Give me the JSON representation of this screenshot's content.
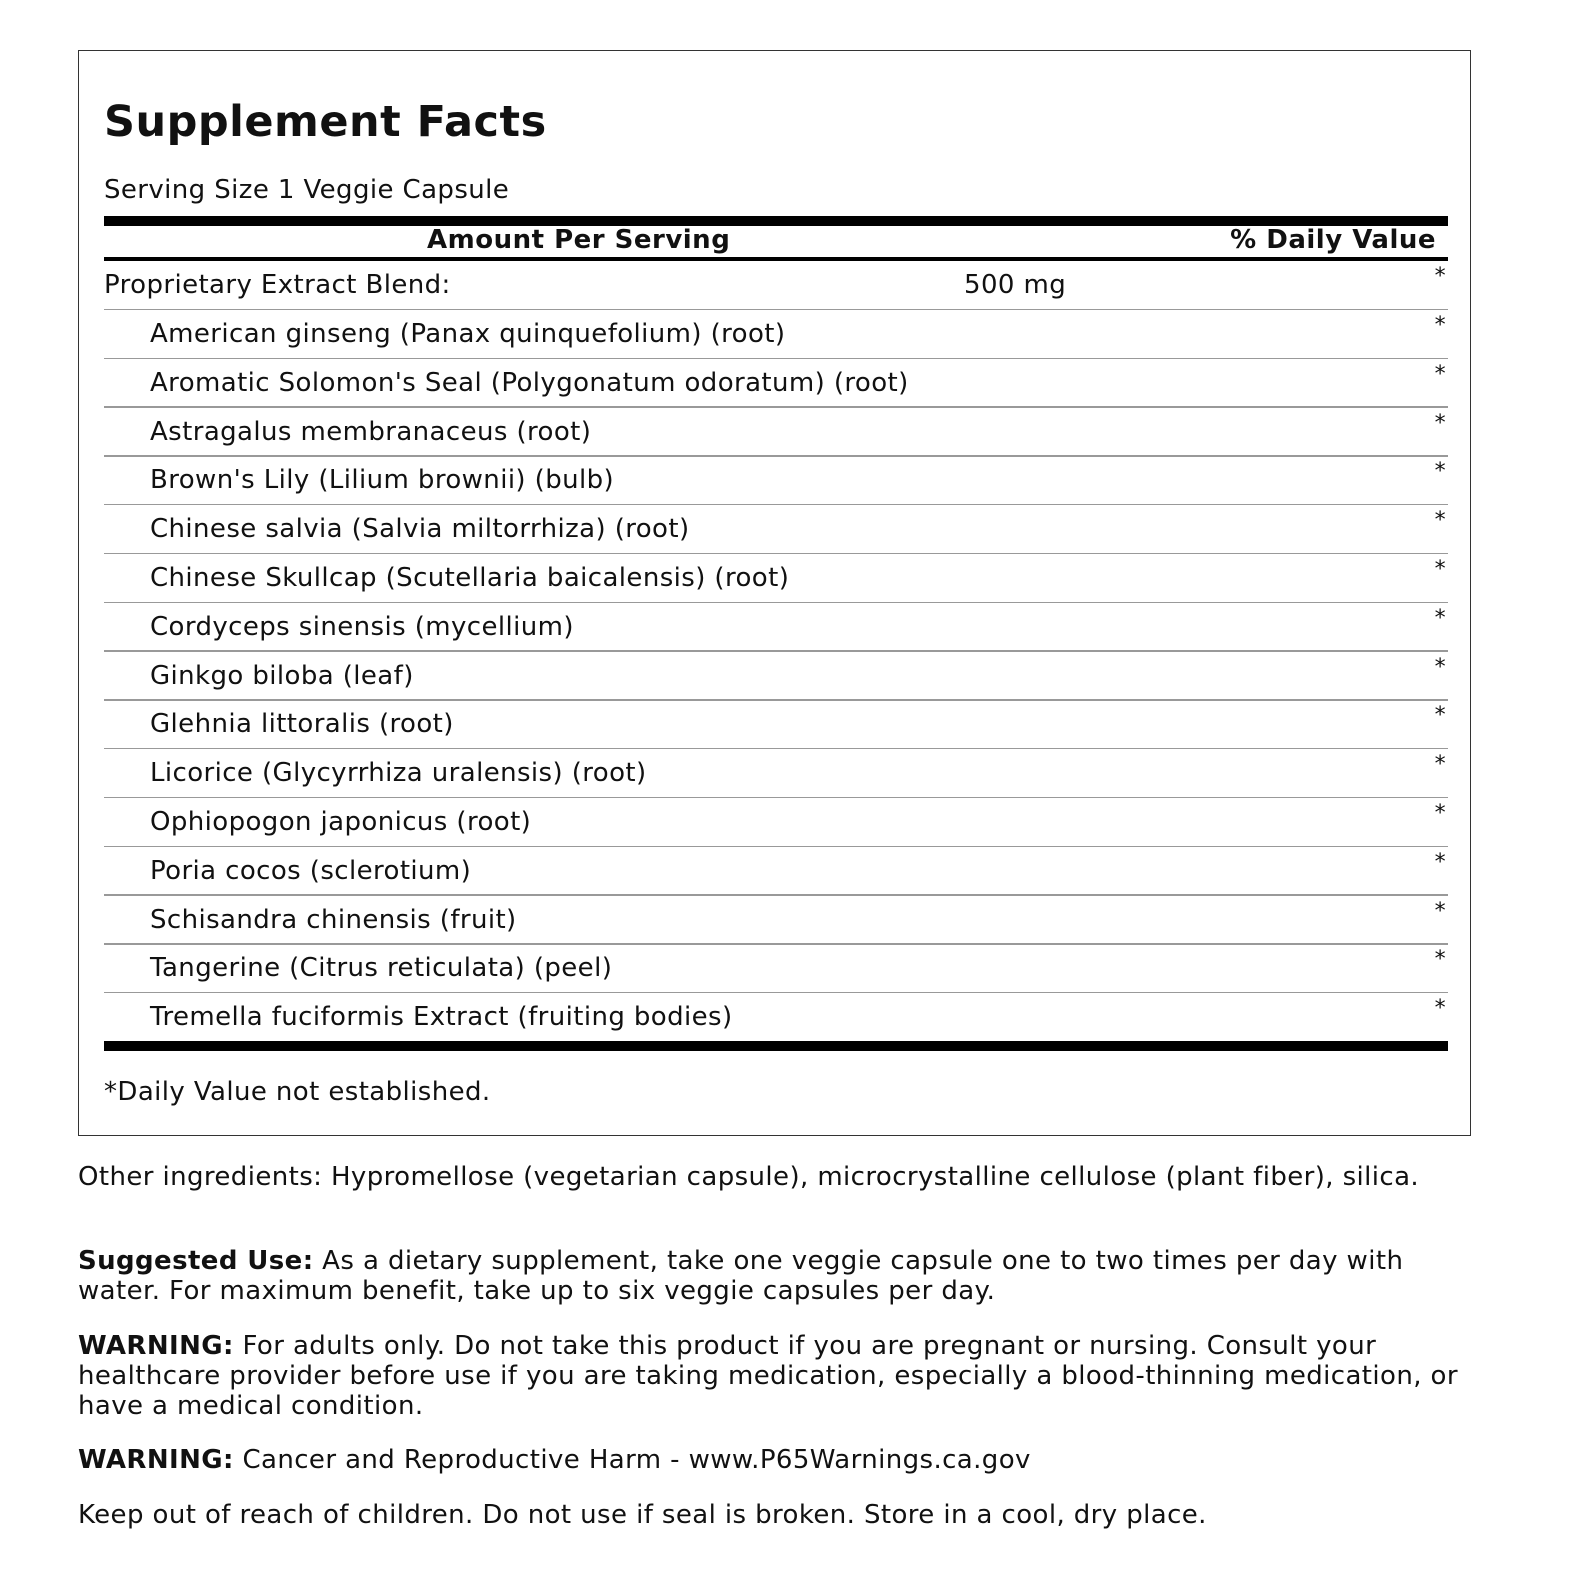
{
  "panel": {
    "title": "Supplement Facts",
    "serving_size": "Serving Size 1 Veggie Capsule",
    "header_amount": "Amount Per Serving",
    "header_dv": "% Daily Value",
    "blend": {
      "name": "Proprietary Extract Blend:",
      "amount": "500 mg",
      "dv": "*"
    },
    "ingredients": [
      {
        "name": "American ginseng (Panax quinquefolium) (root)",
        "dv": "*"
      },
      {
        "name": "Aromatic Solomon's Seal (Polygonatum odoratum) (root)",
        "dv": "*"
      },
      {
        "name": "Astragalus membranaceus (root)",
        "dv": "*"
      },
      {
        "name": "Brown's Lily (Lilium brownii) (bulb)",
        "dv": "*"
      },
      {
        "name": "Chinese salvia (Salvia miltorrhiza) (root)",
        "dv": "*"
      },
      {
        "name": "Chinese Skullcap (Scutellaria baicalensis) (root)",
        "dv": "*"
      },
      {
        "name": "Cordyceps sinensis (mycellium)",
        "dv": "*"
      },
      {
        "name": "Ginkgo biloba (leaf)",
        "dv": "*"
      },
      {
        "name": "Glehnia littoralis (root)",
        "dv": "*"
      },
      {
        "name": "Licorice (Glycyrrhiza uralensis) (root)",
        "dv": "*"
      },
      {
        "name": "Ophiopogon japonicus (root)",
        "dv": "*"
      },
      {
        "name": "Poria cocos (sclerotium)",
        "dv": "*"
      },
      {
        "name": "Schisandra chinensis (fruit)",
        "dv": "*"
      },
      {
        "name": "Tangerine (Citrus reticulata) (peel)",
        "dv": "*"
      },
      {
        "name": "Tremella fuciformis Extract (fruiting bodies)",
        "dv": "*"
      }
    ],
    "footnote": "*Daily Value not established."
  },
  "other_ingredients": "Other ingredients: Hypromellose (vegetarian capsule), microcrystalline cellulose (plant fiber), silica.",
  "suggested_use": {
    "label": "Suggested Use:",
    "text": " As a dietary supplement, take one veggie capsule one to two times per day with water. For maximum benefit, take up to six veggie capsules per day."
  },
  "warning1": {
    "label": "WARNING:",
    "text": " For adults only. Do not take this product if you are pregnant or nursing. Consult your healthcare provider before use if you are taking medication, especially a blood-thinning medication, or have a medical condition."
  },
  "warning2": {
    "label": "WARNING:",
    "text": " Cancer and Reproductive Harm - www.P65Warnings.ca.gov"
  },
  "storage": "Keep out of reach of children. Do not use if seal is broken. Store in a cool, dry place."
}
